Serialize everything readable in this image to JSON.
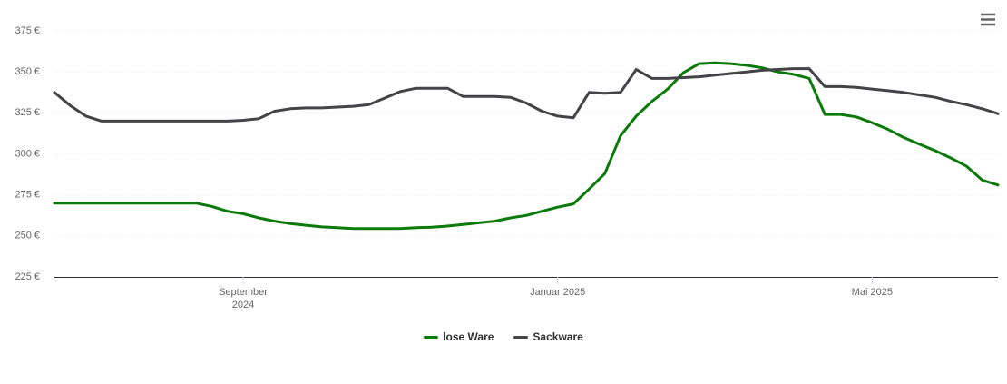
{
  "chart_data": {
    "type": "line",
    "categories": [
      null,
      null,
      null,
      null,
      null,
      null,
      null,
      null,
      null,
      null,
      null,
      null,
      "September 2024",
      null,
      null,
      null,
      null,
      null,
      null,
      null,
      null,
      null,
      null,
      null,
      null,
      null,
      null,
      null,
      null,
      null,
      null,
      null,
      "Januar 2025",
      null,
      null,
      null,
      null,
      null,
      null,
      null,
      null,
      null,
      null,
      null,
      null,
      null,
      null,
      null,
      null,
      null,
      null,
      null,
      "Mai 2025",
      null,
      null,
      null,
      null,
      null,
      null,
      null,
      null
    ],
    "series": [
      {
        "name": "lose Ware",
        "color": "#0a7a0a",
        "values": [
          270,
          270,
          270,
          270,
          270,
          270,
          270,
          270,
          270,
          270,
          268,
          265,
          263.5,
          261,
          259,
          257.5,
          256.5,
          255.5,
          255,
          254.5,
          254.5,
          254.5,
          254.5,
          255,
          255.3,
          256,
          257,
          258,
          259,
          261,
          262.5,
          265,
          267.5,
          269.5,
          278.5,
          288,
          311,
          323,
          332,
          339.5,
          349.5,
          355,
          355.5,
          355,
          354,
          352.5,
          350,
          348.5,
          346,
          324,
          324,
          322.5,
          319,
          315,
          310,
          306,
          302,
          297.5,
          292.5,
          284,
          281
        ]
      },
      {
        "name": "Sackware",
        "color": "#434348",
        "values": [
          337.5,
          329.5,
          323,
          320,
          320,
          320,
          320,
          320,
          320,
          320,
          320,
          320,
          320.5,
          321.5,
          326,
          327.5,
          328,
          328,
          328.5,
          329,
          330,
          334,
          338,
          340,
          340,
          340,
          335,
          335,
          335,
          334.5,
          331,
          326,
          323,
          322,
          337.5,
          337,
          337.5,
          351.5,
          346,
          346,
          346.5,
          347,
          348,
          349,
          350,
          351,
          351.5,
          352,
          352,
          341,
          341,
          340.5,
          339.5,
          338.5,
          337.5,
          336,
          334.5,
          332,
          330,
          327.5,
          324.5
        ]
      }
    ],
    "ylim": [
      225,
      375
    ],
    "yticks": [
      {
        "value": 225,
        "label": "225 €"
      },
      {
        "value": 250,
        "label": "250 €"
      },
      {
        "value": 275,
        "label": "275 €"
      },
      {
        "value": 300,
        "label": "300 €"
      },
      {
        "value": 325,
        "label": "325 €"
      },
      {
        "value": 350,
        "label": "350 €"
      },
      {
        "value": 375,
        "label": "375 €"
      }
    ],
    "grid": true,
    "legend": "bottom"
  }
}
